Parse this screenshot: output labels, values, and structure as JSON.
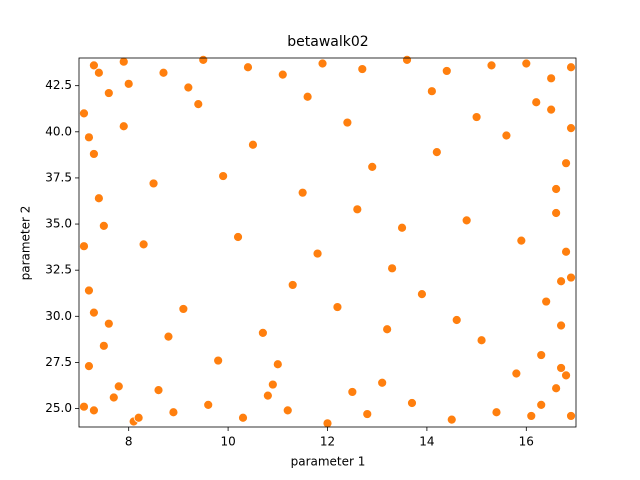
{
  "chart_data": {
    "type": "scatter",
    "title": "betawalk02",
    "xlabel": "parameter 1",
    "ylabel": "parameter 2",
    "color": "#ff7f0e",
    "x": [
      7.1,
      7.2,
      7.3,
      7.1,
      7.4,
      7.2,
      7.6,
      7.3,
      7.1,
      7.5,
      16.9,
      16.8,
      16.7,
      16.9,
      16.6,
      16.8,
      16.5,
      16.9,
      16.7,
      16.4,
      8.1,
      8.9,
      9.6,
      10.3,
      11.2,
      12.0,
      12.8,
      13.7,
      14.5,
      15.4,
      7.9,
      8.7,
      9.5,
      10.4,
      11.1,
      11.9,
      12.7,
      13.6,
      14.4,
      15.3,
      7.3,
      7.7,
      8.2,
      16.3,
      16.6,
      16.1,
      7.4,
      8.0,
      16.5,
      16.0,
      9.1,
      10.2,
      11.5,
      12.4,
      13.3,
      14.2,
      15.1,
      8.5,
      9.8,
      13.9,
      10.7,
      11.8,
      12.9,
      14.8,
      15.6,
      8.3,
      9.4,
      10.9,
      12.2,
      13.5,
      7.2,
      7.5,
      7.8,
      7.3,
      16.8,
      16.6,
      16.9,
      16.3,
      7.6,
      16.7,
      8.6,
      10.8,
      13.1,
      15.8,
      9.2,
      11.6,
      14.1,
      16.2,
      7.9,
      12.5,
      9.9,
      11.3,
      12.6,
      14.6,
      15.9,
      8.8,
      10.5,
      13.2,
      15.0,
      11.0
    ],
    "y": [
      25.1,
      27.3,
      30.2,
      33.8,
      36.4,
      39.7,
      42.1,
      43.6,
      41.0,
      28.4,
      24.6,
      26.8,
      29.5,
      32.1,
      35.6,
      38.3,
      41.2,
      43.5,
      27.2,
      30.8,
      24.3,
      24.8,
      25.2,
      24.5,
      24.9,
      24.2,
      24.7,
      25.3,
      24.4,
      24.8,
      43.8,
      43.2,
      43.9,
      43.5,
      43.1,
      43.7,
      43.4,
      43.9,
      43.3,
      43.6,
      24.9,
      25.6,
      24.5,
      25.2,
      26.1,
      24.6,
      43.2,
      42.6,
      42.9,
      43.7,
      30.4,
      34.3,
      36.7,
      40.5,
      32.6,
      38.9,
      28.7,
      37.2,
      27.6,
      31.2,
      29.1,
      33.4,
      38.1,
      35.2,
      39.8,
      33.9,
      41.5,
      26.3,
      30.5,
      34.8,
      31.4,
      34.9,
      26.2,
      38.8,
      33.5,
      36.9,
      40.2,
      27.9,
      29.6,
      31.9,
      26.0,
      25.7,
      26.4,
      26.9,
      42.4,
      41.9,
      42.2,
      41.6,
      40.3,
      25.9,
      37.6,
      31.7,
      35.8,
      29.8,
      34.1,
      28.9,
      39.3,
      29.3,
      40.8,
      27.4
    ],
    "xlim": [
      7,
      17
    ],
    "ylim": [
      24,
      44
    ],
    "xticks": [
      8,
      10,
      12,
      14,
      16
    ],
    "yticks": [
      {
        "value": 25,
        "label": "25.0"
      },
      27.5,
      {
        "value": 30,
        "label": "30.0"
      },
      32.5,
      {
        "value": 35,
        "label": "35.0"
      },
      37.5,
      {
        "value": 40,
        "label": "40.0"
      },
      42.5
    ]
  }
}
